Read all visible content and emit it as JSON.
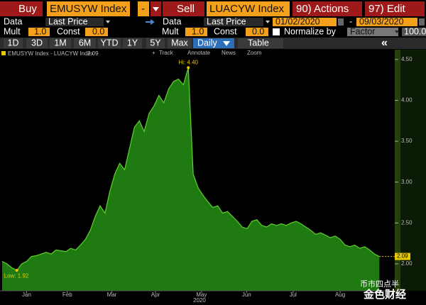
{
  "toolbar": {
    "buy": "Buy",
    "left_ticker": "EMUSYW Index",
    "dash": "-",
    "sell": "Sell",
    "right_ticker": "LUACYW Index",
    "actions": "90) Actions",
    "edit": "97) Edit"
  },
  "left_settings": {
    "data_label": "Data",
    "data_value": "Last Price",
    "mult_label": "Mult",
    "mult_value": "1.0",
    "const_label": "Const",
    "const_value": "0.0"
  },
  "right_settings": {
    "data_label": "Data",
    "data_value": "Last Price",
    "mult_label": "Mult",
    "mult_value": "1.0",
    "const_label": "Const",
    "const_value": "0.0"
  },
  "date_range": {
    "start": "01/02/2020",
    "separator": "-",
    "end": "09/03/2020"
  },
  "normalize": {
    "label": "Normalize by",
    "method": "Factor",
    "factor": "100.0"
  },
  "periods": [
    "1D",
    "3D",
    "1M",
    "6M",
    "YTD",
    "1Y",
    "5Y",
    "Max"
  ],
  "frequency": "Daily",
  "table_button": "Table",
  "chart_tools": [
    "Track",
    "Annotate",
    "News",
    "Zoom"
  ],
  "chart_data": {
    "type": "area",
    "series": [
      {
        "name": "EMUSYW Index - LUACYW Index",
        "color": "#1f7a12",
        "values": [
          2.03,
          2.0,
          1.95,
          1.92,
          2.0,
          2.03,
          2.09,
          2.1,
          2.12,
          2.14,
          2.12,
          2.17,
          2.16,
          2.15,
          2.19,
          2.17,
          2.23,
          2.3,
          2.41,
          2.58,
          2.71,
          2.62,
          2.89,
          3.1,
          3.23,
          3.15,
          3.41,
          3.67,
          3.75,
          3.62,
          3.84,
          3.93,
          4.06,
          3.97,
          4.14,
          4.23,
          4.26,
          4.19,
          4.4,
          3.1,
          2.93,
          2.84,
          2.76,
          2.69,
          2.71,
          2.62,
          2.64,
          2.58,
          2.52,
          2.45,
          2.43,
          2.52,
          2.54,
          2.47,
          2.45,
          2.49,
          2.47,
          2.49,
          2.47,
          2.5,
          2.52,
          2.49,
          2.45,
          2.41,
          2.36,
          2.38,
          2.35,
          2.32,
          2.34,
          2.3,
          2.23,
          2.21,
          2.23,
          2.19,
          2.21,
          2.17,
          2.12,
          2.09
        ]
      }
    ],
    "last_label": "2.09",
    "hi_label": "Hi: 4.40",
    "low_label": "Low: 1.92",
    "xlim": [
      0,
      80
    ],
    "xticks": [
      {
        "value": 5,
        "label": "Jan"
      },
      {
        "value": 13.3,
        "label": "Feb"
      },
      {
        "value": 22.4,
        "label": "Mar"
      },
      {
        "value": 31.3,
        "label": "Apr"
      },
      {
        "value": 40.7,
        "label": "May"
      },
      {
        "value": 49.9,
        "label": "Jun"
      },
      {
        "value": 59.4,
        "label": "Jul"
      },
      {
        "value": 69,
        "label": "Aug"
      }
    ],
    "x_year": "2020",
    "ylim": [
      1.67,
      4.62
    ],
    "yticks": [
      {
        "value": 2,
        "label": "2.00"
      },
      {
        "value": 2.5,
        "label": "2.50"
      },
      {
        "value": 3,
        "label": "3.00"
      },
      {
        "value": 3.5,
        "label": "3.50"
      },
      {
        "value": 4,
        "label": "4.00"
      },
      {
        "value": 4.5,
        "label": "4.50"
      }
    ]
  },
  "watermark": [
    "币市四点半",
    "金色财经"
  ]
}
